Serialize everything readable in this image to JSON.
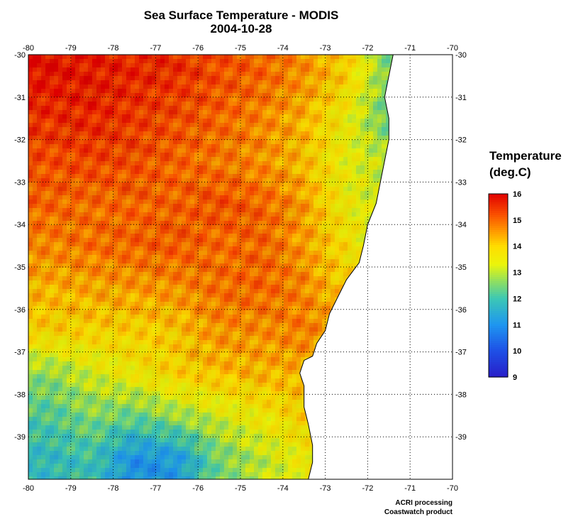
{
  "title": "Sea Surface Temperature - MODIS",
  "date": "2004-10-28",
  "legend": {
    "title_line1": "Temperature",
    "title_line2": "(deg.C)",
    "min": 9,
    "max": 16,
    "ticks": [
      "16",
      "15",
      "14",
      "13",
      "12",
      "11",
      "10",
      "9"
    ],
    "colors": [
      "#e00000",
      "#ff4000",
      "#ff8000",
      "#ffd000",
      "#ffff00",
      "#a0e040",
      "#40d0a0",
      "#20a0f0",
      "#2060e0",
      "#2020c0"
    ]
  },
  "credits": {
    "line1": "ACRI processing",
    "line2": "Coastwatch product"
  },
  "chart_data": {
    "type": "heatmap",
    "title": "Sea Surface Temperature - MODIS",
    "subtitle": "2004-10-28",
    "xlabel": "",
    "ylabel": "",
    "xlim": [
      -80,
      -70
    ],
    "ylim": [
      -40,
      -30
    ],
    "x_ticks": [
      "-80",
      "-79",
      "-78",
      "-77",
      "-76",
      "-75",
      "-74",
      "-73",
      "-72",
      "-71",
      "-70"
    ],
    "y_ticks": [
      "-30",
      "-31",
      "-32",
      "-33",
      "-34",
      "-35",
      "-36",
      "-37",
      "-38",
      "-39"
    ],
    "grid": true,
    "colorbar_range": [
      9,
      16
    ],
    "colorbar_label": "Temperature (deg.C)",
    "coastline": [
      [
        -71.4,
        -30.0
      ],
      [
        -71.5,
        -30.5
      ],
      [
        -71.6,
        -31.0
      ],
      [
        -71.5,
        -31.5
      ],
      [
        -71.5,
        -32.0
      ],
      [
        -71.6,
        -32.5
      ],
      [
        -71.7,
        -33.0
      ],
      [
        -71.8,
        -33.5
      ],
      [
        -72.0,
        -34.0
      ],
      [
        -72.1,
        -34.5
      ],
      [
        -72.2,
        -34.9
      ],
      [
        -72.5,
        -35.3
      ],
      [
        -72.7,
        -35.7
      ],
      [
        -72.9,
        -36.1
      ],
      [
        -73.0,
        -36.5
      ],
      [
        -73.2,
        -36.8
      ],
      [
        -73.3,
        -37.1
      ],
      [
        -73.5,
        -37.2
      ],
      [
        -73.6,
        -37.5
      ],
      [
        -73.5,
        -37.8
      ],
      [
        -73.5,
        -38.3
      ],
      [
        -73.4,
        -38.7
      ],
      [
        -73.3,
        -39.2
      ],
      [
        -73.3,
        -39.6
      ],
      [
        -73.4,
        -40.0
      ]
    ],
    "temperature_grid": {
      "rows_lat": [
        -30.5,
        -31.5,
        -32.5,
        -33.5,
        -34.5,
        -35.5,
        -36.5,
        -37.5,
        -38.5,
        -39.5
      ],
      "cols_lon": [
        -79.5,
        -78.5,
        -77.5,
        -76.5,
        -75.5,
        -74.5,
        -73.5,
        -72.5,
        -71.5
      ],
      "values": [
        [
          15.8,
          15.7,
          15.6,
          15.5,
          15.2,
          15.0,
          14.6,
          14.0,
          12.5
        ],
        [
          15.5,
          15.6,
          15.4,
          15.2,
          15.0,
          14.7,
          14.3,
          13.5,
          12.3
        ],
        [
          15.2,
          15.3,
          15.2,
          15.0,
          14.8,
          14.6,
          14.2,
          13.4,
          13.0
        ],
        [
          15.0,
          14.9,
          15.0,
          15.0,
          15.2,
          15.0,
          14.5,
          13.5,
          13.0
        ],
        [
          14.7,
          14.9,
          15.0,
          15.1,
          14.9,
          15.0,
          14.5,
          13.8,
          13.0
        ],
        [
          14.3,
          14.4,
          14.5,
          14.6,
          14.9,
          15.0,
          14.7,
          14.0,
          13.5
        ],
        [
          14.0,
          14.0,
          14.0,
          14.1,
          14.6,
          14.6,
          14.8,
          14.2,
          14.0
        ],
        [
          12.7,
          13.2,
          13.6,
          14.0,
          14.2,
          14.3,
          14.3,
          14.0,
          14.0
        ],
        [
          12.2,
          12.6,
          12.4,
          12.8,
          13.2,
          13.6,
          14.0,
          14.0,
          14.0
        ],
        [
          11.8,
          12.0,
          11.0,
          11.2,
          12.5,
          13.0,
          13.5,
          14.0,
          14.0
        ]
      ]
    }
  }
}
